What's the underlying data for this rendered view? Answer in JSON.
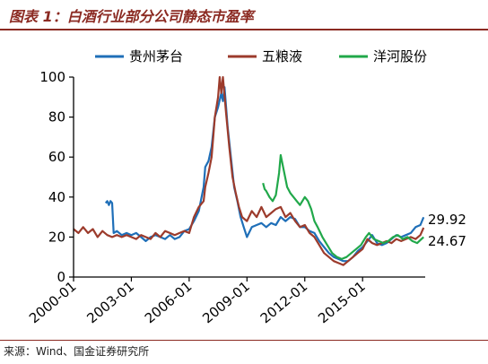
{
  "figure": {
    "title": "图表 1：白酒行业部分公司静态市盈率",
    "source": "来源：Wind、国金证券研究所"
  },
  "chart_data": {
    "type": "line",
    "x_tick_labels": [
      "2000-01",
      "2003-01",
      "2006-01",
      "2009-01",
      "2012-01",
      "2015-01"
    ],
    "x_range": [
      "2000-01",
      "2018-04"
    ],
    "y_ticks": [
      0,
      20,
      40,
      60,
      80,
      100
    ],
    "ylim": [
      0,
      100
    ],
    "grid": false,
    "legend_position": "top",
    "series": [
      {
        "name": "贵州茅台",
        "color": "#1f6fb8",
        "points": [
          [
            "2001-09",
            37
          ],
          [
            "2001-10",
            38
          ],
          [
            "2001-11",
            36
          ],
          [
            "2001-12",
            38
          ],
          [
            "2002-01",
            37
          ],
          [
            "2002-02",
            22
          ],
          [
            "2002-04",
            23
          ],
          [
            "2002-07",
            21
          ],
          [
            "2002-10",
            22
          ],
          [
            "2003-01",
            21
          ],
          [
            "2003-04",
            22
          ],
          [
            "2003-07",
            20
          ],
          [
            "2003-10",
            18
          ],
          [
            "2004-01",
            20
          ],
          [
            "2004-04",
            21
          ],
          [
            "2004-07",
            20
          ],
          [
            "2004-10",
            19
          ],
          [
            "2005-01",
            21
          ],
          [
            "2005-04",
            19
          ],
          [
            "2005-07",
            20
          ],
          [
            "2005-10",
            23
          ],
          [
            "2006-01",
            24
          ],
          [
            "2006-04",
            28
          ],
          [
            "2006-07",
            33
          ],
          [
            "2006-10",
            45
          ],
          [
            "2006-11",
            55
          ],
          [
            "2007-01",
            58
          ],
          [
            "2007-03",
            65
          ],
          [
            "2007-05",
            80
          ],
          [
            "2007-07",
            85
          ],
          [
            "2007-09",
            92
          ],
          [
            "2007-10",
            88
          ],
          [
            "2007-11",
            95
          ],
          [
            "2008-01",
            75
          ],
          [
            "2008-03",
            60
          ],
          [
            "2008-05",
            45
          ],
          [
            "2008-07",
            38
          ],
          [
            "2008-09",
            30
          ],
          [
            "2008-11",
            25
          ],
          [
            "2009-01",
            20
          ],
          [
            "2009-04",
            25
          ],
          [
            "2009-07",
            26
          ],
          [
            "2009-10",
            27
          ],
          [
            "2010-01",
            25
          ],
          [
            "2010-04",
            27
          ],
          [
            "2010-07",
            26
          ],
          [
            "2010-10",
            30
          ],
          [
            "2011-01",
            28
          ],
          [
            "2011-04",
            30
          ],
          [
            "2011-07",
            29
          ],
          [
            "2011-10",
            25
          ],
          [
            "2012-01",
            25
          ],
          [
            "2012-04",
            23
          ],
          [
            "2012-07",
            22
          ],
          [
            "2012-10",
            18
          ],
          [
            "2013-01",
            15
          ],
          [
            "2013-04",
            12
          ],
          [
            "2013-07",
            10
          ],
          [
            "2013-10",
            9
          ],
          [
            "2014-01",
            8
          ],
          [
            "2014-04",
            8
          ],
          [
            "2014-07",
            10
          ],
          [
            "2014-10",
            13
          ],
          [
            "2015-01",
            15
          ],
          [
            "2015-04",
            18
          ],
          [
            "2015-07",
            21
          ],
          [
            "2015-10",
            17
          ],
          [
            "2016-01",
            16
          ],
          [
            "2016-04",
            17
          ],
          [
            "2016-07",
            19
          ],
          [
            "2016-10",
            21
          ],
          [
            "2017-01",
            20
          ],
          [
            "2017-04",
            21
          ],
          [
            "2017-07",
            22
          ],
          [
            "2017-10",
            25
          ],
          [
            "2018-01",
            26
          ],
          [
            "2018-03",
            29.92
          ]
        ]
      },
      {
        "name": "五粮液",
        "color": "#9c3b2c",
        "points": [
          [
            "2000-01",
            24
          ],
          [
            "2000-04",
            22
          ],
          [
            "2000-07",
            25
          ],
          [
            "2000-10",
            22
          ],
          [
            "2001-01",
            24
          ],
          [
            "2001-04",
            20
          ],
          [
            "2001-07",
            23
          ],
          [
            "2001-10",
            21
          ],
          [
            "2002-01",
            20
          ],
          [
            "2002-04",
            21
          ],
          [
            "2002-07",
            20
          ],
          [
            "2002-10",
            21
          ],
          [
            "2003-01",
            20
          ],
          [
            "2003-04",
            19
          ],
          [
            "2003-07",
            21
          ],
          [
            "2003-10",
            20
          ],
          [
            "2004-01",
            19
          ],
          [
            "2004-04",
            22
          ],
          [
            "2004-07",
            20
          ],
          [
            "2004-10",
            23
          ],
          [
            "2005-01",
            22
          ],
          [
            "2005-04",
            21
          ],
          [
            "2005-07",
            22
          ],
          [
            "2005-10",
            23
          ],
          [
            "2006-01",
            22
          ],
          [
            "2006-04",
            30
          ],
          [
            "2006-07",
            35
          ],
          [
            "2006-10",
            38
          ],
          [
            "2006-11",
            45
          ],
          [
            "2007-01",
            52
          ],
          [
            "2007-03",
            60
          ],
          [
            "2007-05",
            80
          ],
          [
            "2007-07",
            90
          ],
          [
            "2007-08",
            100
          ],
          [
            "2007-09",
            92
          ],
          [
            "2007-10",
            100
          ],
          [
            "2007-12",
            82
          ],
          [
            "2008-02",
            65
          ],
          [
            "2008-04",
            50
          ],
          [
            "2008-06",
            42
          ],
          [
            "2008-08",
            35
          ],
          [
            "2008-10",
            30
          ],
          [
            "2009-01",
            28
          ],
          [
            "2009-04",
            33
          ],
          [
            "2009-07",
            30
          ],
          [
            "2009-10",
            35
          ],
          [
            "2010-01",
            30
          ],
          [
            "2010-04",
            32
          ],
          [
            "2010-07",
            34
          ],
          [
            "2010-10",
            35
          ],
          [
            "2011-01",
            30
          ],
          [
            "2011-04",
            32
          ],
          [
            "2011-07",
            28
          ],
          [
            "2011-10",
            25
          ],
          [
            "2012-01",
            26
          ],
          [
            "2012-04",
            22
          ],
          [
            "2012-07",
            20
          ],
          [
            "2012-10",
            16
          ],
          [
            "2013-01",
            12
          ],
          [
            "2013-04",
            10
          ],
          [
            "2013-07",
            8
          ],
          [
            "2013-10",
            7
          ],
          [
            "2014-01",
            6
          ],
          [
            "2014-04",
            8
          ],
          [
            "2014-07",
            10
          ],
          [
            "2014-10",
            12
          ],
          [
            "2015-01",
            14
          ],
          [
            "2015-04",
            19
          ],
          [
            "2015-07",
            17
          ],
          [
            "2015-10",
            16
          ],
          [
            "2016-01",
            17
          ],
          [
            "2016-04",
            18
          ],
          [
            "2016-07",
            17
          ],
          [
            "2016-10",
            19
          ],
          [
            "2017-01",
            18
          ],
          [
            "2017-04",
            19
          ],
          [
            "2017-07",
            20
          ],
          [
            "2017-10",
            19
          ],
          [
            "2018-01",
            21
          ],
          [
            "2018-03",
            24.67
          ]
        ]
      },
      {
        "name": "洋河股份",
        "color": "#21a84a",
        "points": [
          [
            "2009-11",
            47
          ],
          [
            "2009-12",
            44
          ],
          [
            "2010-01",
            43
          ],
          [
            "2010-03",
            40
          ],
          [
            "2010-05",
            38
          ],
          [
            "2010-07",
            41
          ],
          [
            "2010-09",
            52
          ],
          [
            "2010-10",
            61
          ],
          [
            "2010-12",
            53
          ],
          [
            "2011-02",
            45
          ],
          [
            "2011-04",
            42
          ],
          [
            "2011-06",
            40
          ],
          [
            "2011-08",
            38
          ],
          [
            "2011-10",
            36
          ],
          [
            "2012-01",
            40
          ],
          [
            "2012-03",
            38
          ],
          [
            "2012-05",
            34
          ],
          [
            "2012-07",
            28
          ],
          [
            "2012-09",
            25
          ],
          [
            "2012-12",
            20
          ],
          [
            "2013-03",
            16
          ],
          [
            "2013-06",
            12
          ],
          [
            "2013-09",
            10
          ],
          [
            "2013-12",
            9
          ],
          [
            "2014-03",
            10
          ],
          [
            "2014-06",
            12
          ],
          [
            "2014-09",
            14
          ],
          [
            "2014-12",
            16
          ],
          [
            "2015-03",
            20
          ],
          [
            "2015-05",
            22
          ],
          [
            "2015-08",
            19
          ],
          [
            "2015-11",
            18
          ],
          [
            "2016-02",
            17
          ],
          [
            "2016-05",
            18
          ],
          [
            "2016-08",
            20
          ],
          [
            "2016-11",
            21
          ],
          [
            "2017-02",
            19
          ],
          [
            "2017-05",
            20
          ],
          [
            "2017-08",
            18
          ],
          [
            "2017-11",
            17
          ],
          [
            "2018-03",
            20
          ]
        ]
      }
    ],
    "end_labels": [
      {
        "value_text": "29.92",
        "y": 29.92
      },
      {
        "value_text": "24.67",
        "y": 24.67
      }
    ]
  }
}
